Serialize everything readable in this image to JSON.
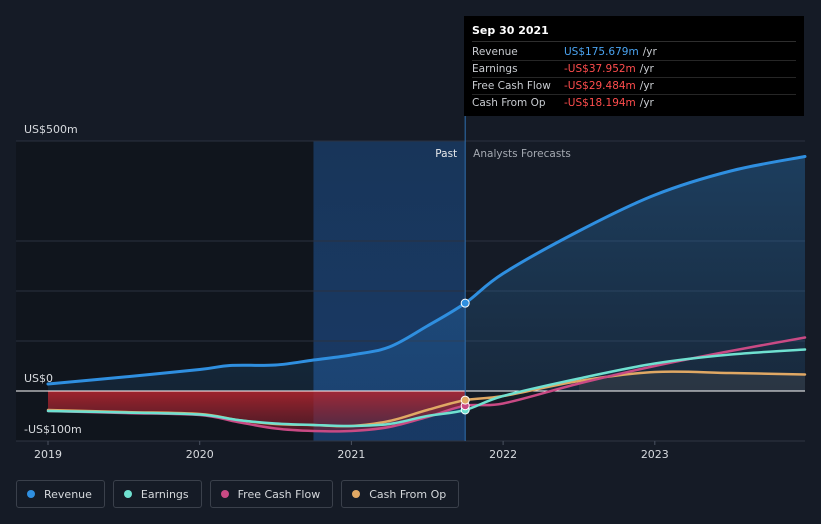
{
  "tooltip": {
    "date": "Sep 30 2021",
    "rows": [
      {
        "label": "Revenue",
        "value": "US$175.679m",
        "unit": "/yr",
        "color": "#4aa3f0"
      },
      {
        "label": "Earnings",
        "value": "-US$37.952m",
        "unit": "/yr",
        "color": "#ff4d4d"
      },
      {
        "label": "Free Cash Flow",
        "value": "-US$29.484m",
        "unit": "/yr",
        "color": "#ff4d4d"
      },
      {
        "label": "Cash From Op",
        "value": "-US$18.194m",
        "unit": "/yr",
        "color": "#ff4d4d"
      }
    ]
  },
  "legend": [
    {
      "label": "Revenue",
      "color": "#2f8fe0"
    },
    {
      "label": "Earnings",
      "color": "#6fe0d0"
    },
    {
      "label": "Free Cash Flow",
      "color": "#c94a84"
    },
    {
      "label": "Cash From Op",
      "color": "#e0a864"
    }
  ],
  "chart_data": {
    "type": "line",
    "title": "",
    "xlabel": "",
    "ylabel": "",
    "ylim": [
      -100,
      500
    ],
    "xlim": [
      2019.0,
      2023.99
    ],
    "y_tick_labels": [
      {
        "value": 500,
        "label": "US$500m"
      },
      {
        "value": 0,
        "label": "US$0"
      },
      {
        "value": -100,
        "label": "-US$100m"
      }
    ],
    "x_ticks": [
      {
        "value": 2019,
        "label": "2019"
      },
      {
        "value": 2020,
        "label": "2020"
      },
      {
        "value": 2021,
        "label": "2021"
      },
      {
        "value": 2022,
        "label": "2022"
      },
      {
        "value": 2023,
        "label": "2023"
      }
    ],
    "divider": {
      "x": 2021.75,
      "past_label": "Past",
      "forecast_label": "Analysts Forecasts"
    },
    "highlight_start": 2020.75,
    "series": [
      {
        "name": "Revenue",
        "color": "#2f8fe0",
        "points": [
          [
            2019.0,
            14
          ],
          [
            2019.5,
            28
          ],
          [
            2020.0,
            43
          ],
          [
            2020.2,
            51
          ],
          [
            2020.5,
            52
          ],
          [
            2020.75,
            62
          ],
          [
            2021.0,
            72
          ],
          [
            2021.25,
            88
          ],
          [
            2021.5,
            130
          ],
          [
            2021.75,
            175.7
          ],
          [
            2022.0,
            235
          ],
          [
            2022.5,
            320
          ],
          [
            2023.0,
            392
          ],
          [
            2023.5,
            440
          ],
          [
            2023.99,
            469
          ]
        ]
      },
      {
        "name": "Earnings",
        "color": "#6fe0d0",
        "points": [
          [
            2019.0,
            -40
          ],
          [
            2019.5,
            -43
          ],
          [
            2020.0,
            -47
          ],
          [
            2020.25,
            -58
          ],
          [
            2020.5,
            -65
          ],
          [
            2020.75,
            -68
          ],
          [
            2021.0,
            -70
          ],
          [
            2021.25,
            -66
          ],
          [
            2021.5,
            -50
          ],
          [
            2021.75,
            -37.95
          ],
          [
            2022.0,
            -10
          ],
          [
            2022.5,
            25
          ],
          [
            2023.0,
            55
          ],
          [
            2023.5,
            73
          ],
          [
            2023.99,
            83
          ]
        ]
      },
      {
        "name": "Free Cash Flow",
        "color": "#c94a84",
        "points": [
          [
            2019.0,
            -40
          ],
          [
            2019.5,
            -44
          ],
          [
            2020.0,
            -48
          ],
          [
            2020.25,
            -62
          ],
          [
            2020.5,
            -75
          ],
          [
            2020.75,
            -80
          ],
          [
            2021.0,
            -80
          ],
          [
            2021.25,
            -72
          ],
          [
            2021.5,
            -52
          ],
          [
            2021.75,
            -29.48
          ],
          [
            2022.0,
            -25
          ],
          [
            2022.5,
            15
          ],
          [
            2023.0,
            50
          ],
          [
            2023.5,
            80
          ],
          [
            2023.99,
            107
          ]
        ]
      },
      {
        "name": "Cash From Op",
        "color": "#e0a864",
        "points": [
          [
            2019.0,
            -38
          ],
          [
            2019.5,
            -42
          ],
          [
            2020.0,
            -46
          ],
          [
            2020.25,
            -58
          ],
          [
            2020.5,
            -66
          ],
          [
            2020.75,
            -68
          ],
          [
            2021.0,
            -70
          ],
          [
            2021.25,
            -60
          ],
          [
            2021.5,
            -38
          ],
          [
            2021.75,
            -18.19
          ],
          [
            2022.0,
            -10
          ],
          [
            2022.5,
            20
          ],
          [
            2023.0,
            38
          ],
          [
            2023.5,
            36
          ],
          [
            2023.99,
            33
          ]
        ]
      }
    ]
  }
}
